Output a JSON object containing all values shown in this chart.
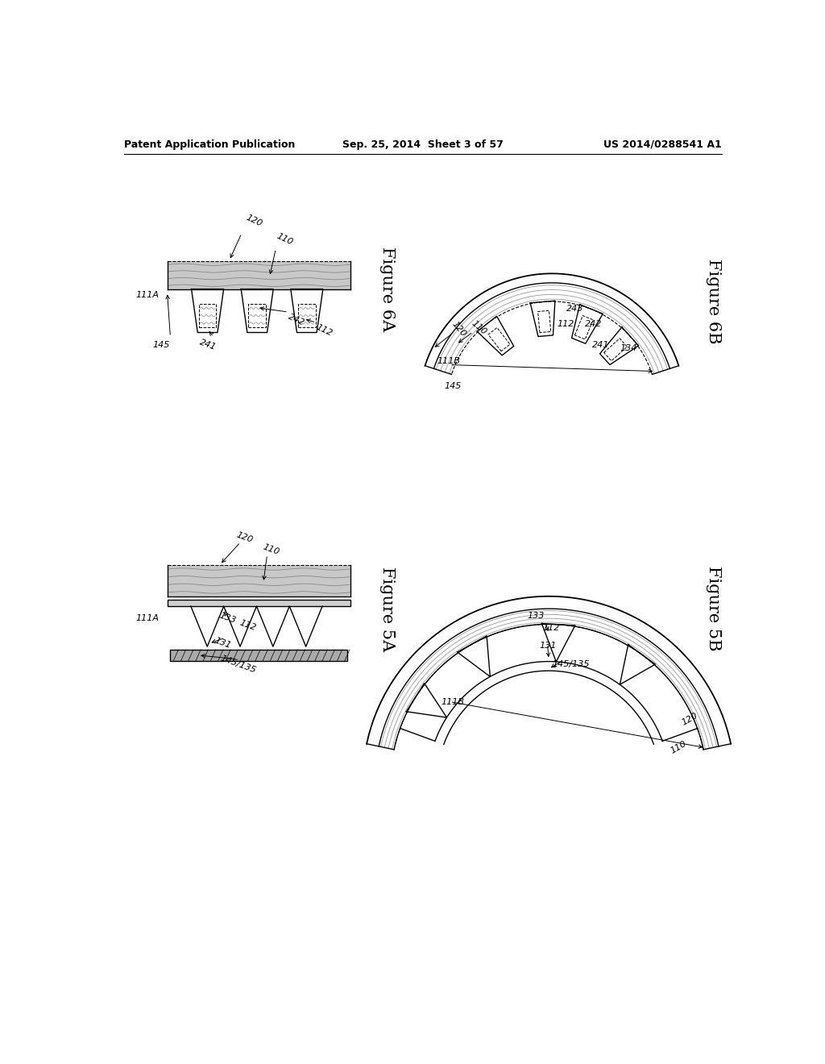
{
  "bg_color": "#ffffff",
  "header_left": "Patent Application Publication",
  "header_center": "Sep. 25, 2014  Sheet 3 of 57",
  "header_right": "US 2014/0288541 A1",
  "fig6A_label": "Figure 6A",
  "fig6B_label": "Figure 6B",
  "fig5A_label": "Figure 5A",
  "fig5B_label": "Figure 5B",
  "line_color": "#000000",
  "line_width": 1.0,
  "label_fontsize": 8,
  "header_fontsize": 9,
  "fig_label_fontsize": 15
}
